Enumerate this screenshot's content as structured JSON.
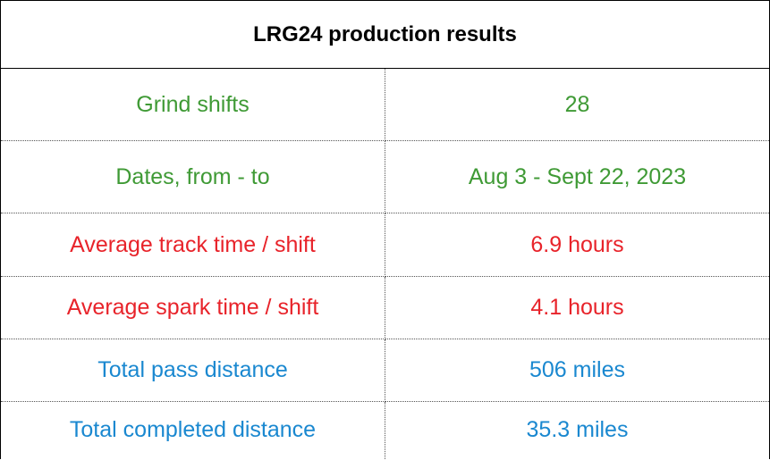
{
  "table": {
    "title": "LRG24 production results",
    "rows": [
      [
        "Grind shifts",
        "28"
      ],
      [
        "Dates, from - to",
        "Aug 3 - Sept 22, 2023"
      ],
      [
        "Average track time / shift",
        "6.9 hours"
      ],
      [
        "Average spark time / shift",
        "4.1 hours"
      ],
      [
        "Total pass distance",
        "506 miles"
      ],
      [
        "Total completed distance",
        "35.3 miles"
      ]
    ]
  }
}
